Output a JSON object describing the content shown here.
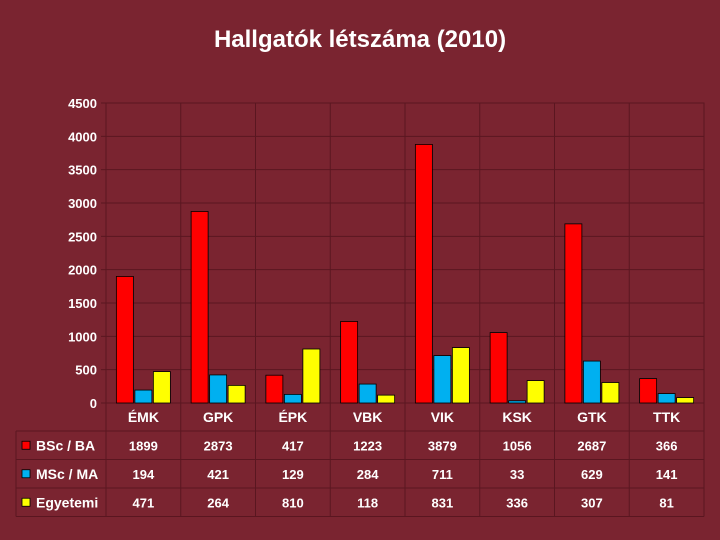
{
  "chart_data": {
    "type": "bar",
    "title": "Hallgatók létszáma (2010)",
    "xlabel": "",
    "ylabel": "",
    "categories": [
      "ÉMK",
      "GPK",
      "ÉPK",
      "VBK",
      "VIK",
      "KSK",
      "GTK",
      "TTK"
    ],
    "series": [
      {
        "name": "BSc / BA",
        "color": "#ff0000",
        "values": [
          1899,
          2873,
          417,
          1223,
          3879,
          1056,
          2687,
          366
        ]
      },
      {
        "name": "MSc / MA",
        "color": "#00b0f0",
        "values": [
          194,
          421,
          129,
          284,
          711,
          33,
          629,
          141
        ]
      },
      {
        "name": "Egyetemi",
        "color": "#ffff00",
        "values": [
          471,
          264,
          810,
          118,
          831,
          336,
          307,
          81
        ]
      }
    ],
    "ylim": [
      0,
      4500
    ],
    "yticks": [
      0,
      500,
      1000,
      1500,
      2000,
      2500,
      3000,
      3500,
      4000,
      4500
    ],
    "grid": true,
    "legend": "data-table",
    "data_table": true
  }
}
